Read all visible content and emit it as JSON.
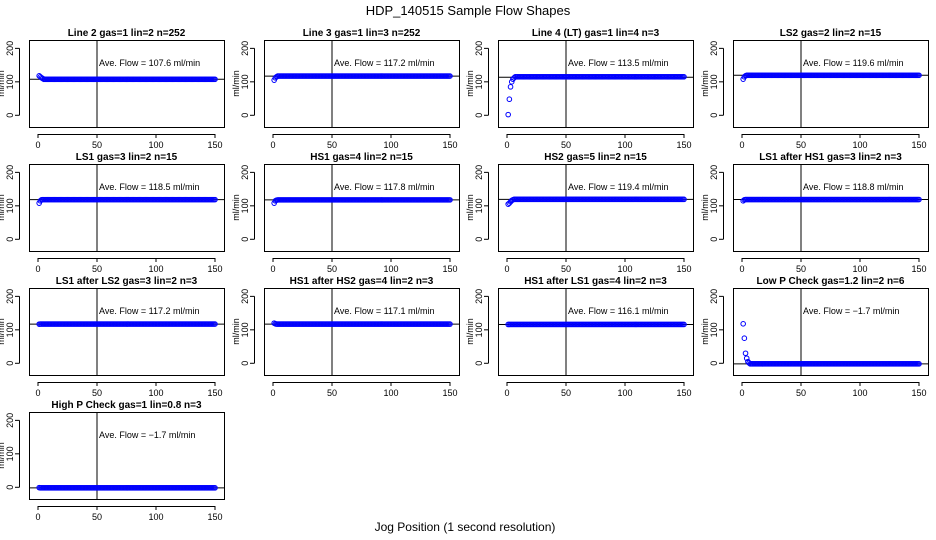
{
  "title": "HDP_140515  Sample Flow Shapes",
  "xlabel": "Jog Position (1 second resolution)",
  "ylabel": "ml/min",
  "colors": {
    "points": "#0000ff",
    "lines": "#000000"
  },
  "chart_data": [
    {
      "type": "scatter",
      "title": "Line 2 gas=1 lin=2 n=252",
      "annotation": "Ave. Flow =  107.6  ml/min",
      "xlim": [
        0,
        150
      ],
      "ylim": [
        0,
        200
      ],
      "xticks": [
        0,
        50,
        100,
        150
      ],
      "yticks": [
        0,
        100,
        200
      ],
      "vline": 50,
      "hline": 107.6,
      "start": [
        118,
        115,
        112,
        110
      ],
      "plateau": 107.6
    },
    {
      "type": "scatter",
      "title": "Line 3 gas=1 lin=3 n=252",
      "annotation": "Ave. Flow =  117.2  ml/min",
      "xlim": [
        0,
        150
      ],
      "ylim": [
        0,
        200
      ],
      "xticks": [
        0,
        50,
        100,
        150
      ],
      "yticks": [
        0,
        100,
        200
      ],
      "vline": 50,
      "hline": 117.2,
      "start": [
        105,
        112,
        115
      ],
      "plateau": 117.2
    },
    {
      "type": "scatter",
      "title": "Line 4 (LT) gas=1 lin=4 n=3",
      "annotation": "Ave. Flow =  113.5  ml/min",
      "xlim": [
        0,
        150
      ],
      "ylim": [
        0,
        200
      ],
      "xticks": [
        0,
        50,
        100,
        150
      ],
      "yticks": [
        0,
        100,
        200
      ],
      "vline": 50,
      "hline": 113.5,
      "start": [
        2,
        48,
        85,
        100,
        108,
        112
      ],
      "plateau": 115
    },
    {
      "type": "scatter",
      "title": "LS2 gas=2 lin=2 n=15",
      "annotation": "Ave. Flow =  119.6  ml/min",
      "xlim": [
        0,
        150
      ],
      "ylim": [
        0,
        200
      ],
      "xticks": [
        0,
        50,
        100,
        150
      ],
      "yticks": [
        0,
        100,
        200
      ],
      "vline": 50,
      "hline": 119.6,
      "start": [
        108,
        115,
        118
      ],
      "plateau": 119.6
    },
    {
      "type": "scatter",
      "title": "LS1 gas=3 lin=2 n=15",
      "annotation": "Ave. Flow =  118.5  ml/min",
      "xlim": [
        0,
        150
      ],
      "ylim": [
        0,
        200
      ],
      "xticks": [
        0,
        50,
        100,
        150
      ],
      "yticks": [
        0,
        100,
        200
      ],
      "vline": 50,
      "hline": 118.5,
      "start": [
        108,
        115,
        118
      ],
      "plateau": 118.5
    },
    {
      "type": "scatter",
      "title": "HS1 gas=4 lin=2 n=15",
      "annotation": "Ave. Flow =  117.8  ml/min",
      "xlim": [
        0,
        150
      ],
      "ylim": [
        0,
        200
      ],
      "xticks": [
        0,
        50,
        100,
        150
      ],
      "yticks": [
        0,
        100,
        200
      ],
      "vline": 50,
      "hline": 117.8,
      "start": [
        108,
        115,
        117
      ],
      "plateau": 117.8
    },
    {
      "type": "scatter",
      "title": "HS2 gas=5 lin=2 n=15",
      "annotation": "Ave. Flow =  119.4  ml/min",
      "xlim": [
        0,
        150
      ],
      "ylim": [
        0,
        200
      ],
      "xticks": [
        0,
        50,
        100,
        150
      ],
      "yticks": [
        0,
        100,
        200
      ],
      "vline": 50,
      "hline": 119.4,
      "start": [
        105,
        108,
        112,
        116,
        118
      ],
      "plateau": 119.4
    },
    {
      "type": "scatter",
      "title": "LS1 after HS1 gas=3 lin=2 n=3",
      "annotation": "Ave. Flow =  118.8  ml/min",
      "xlim": [
        0,
        150
      ],
      "ylim": [
        0,
        200
      ],
      "xticks": [
        0,
        50,
        100,
        150
      ],
      "yticks": [
        0,
        100,
        200
      ],
      "vline": 50,
      "hline": 118.8,
      "start": [
        115,
        118
      ],
      "plateau": 118.8
    },
    {
      "type": "scatter",
      "title": "LS1 after LS2 gas=3 lin=2 n=3",
      "annotation": "Ave. Flow =  117.2  ml/min",
      "xlim": [
        0,
        150
      ],
      "ylim": [
        0,
        200
      ],
      "xticks": [
        0,
        50,
        100,
        150
      ],
      "yticks": [
        0,
        100,
        200
      ],
      "vline": 50,
      "hline": 117.2,
      "start": [
        117
      ],
      "plateau": 117.2
    },
    {
      "type": "scatter",
      "title": "HS1 after HS2 gas=4 lin=2 n=3",
      "annotation": "Ave. Flow =  117.1  ml/min",
      "xlim": [
        0,
        150
      ],
      "ylim": [
        0,
        200
      ],
      "xticks": [
        0,
        50,
        100,
        150
      ],
      "yticks": [
        0,
        100,
        200
      ],
      "vline": 50,
      "hline": 117.1,
      "start": [
        120,
        118
      ],
      "plateau": 117.1
    },
    {
      "type": "scatter",
      "title": "HS1 after LS1 gas=4 lin=2 n=3",
      "annotation": "Ave. Flow =  116.1  ml/min",
      "xlim": [
        0,
        150
      ],
      "ylim": [
        0,
        200
      ],
      "xticks": [
        0,
        50,
        100,
        150
      ],
      "yticks": [
        0,
        100,
        200
      ],
      "vline": 50,
      "hline": 116.1,
      "start": [
        116
      ],
      "plateau": 116.1
    },
    {
      "type": "scatter",
      "title": "Low P Check gas=1.2 lin=2 n=6",
      "annotation": "Ave. Flow =  −1.7  ml/min",
      "xlim": [
        0,
        150
      ],
      "ylim": [
        0,
        200
      ],
      "xticks": [
        0,
        50,
        100,
        150
      ],
      "yticks": [
        0,
        100,
        200
      ],
      "vline": 50,
      "hline": -1.7,
      "start": [
        118,
        75,
        30,
        15,
        5,
        1
      ],
      "plateau": -1.7
    },
    {
      "type": "scatter",
      "title": "High P Check gas=1 lin=0.8 n=3",
      "annotation": "Ave. Flow =  −1.7  ml/min",
      "xlim": [
        0,
        150
      ],
      "ylim": [
        0,
        200
      ],
      "xticks": [
        0,
        50,
        100,
        150
      ],
      "yticks": [
        0,
        100,
        200
      ],
      "vline": 50,
      "hline": -1.7,
      "start": [
        -1
      ],
      "plateau": -1.7
    }
  ]
}
